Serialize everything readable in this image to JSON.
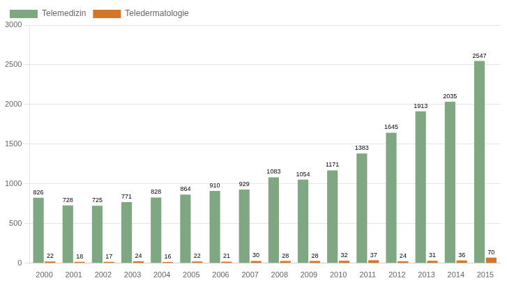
{
  "chart_data": {
    "type": "bar",
    "categories": [
      "2000",
      "2001",
      "2002",
      "2003",
      "2004",
      "2005",
      "2006",
      "2007",
      "2008",
      "2009",
      "2010",
      "2011",
      "2012",
      "2013",
      "2014",
      "2015"
    ],
    "series": [
      {
        "name": "Telemedizin",
        "color": "#7fa882",
        "values": [
          826,
          728,
          725,
          771,
          828,
          864,
          910,
          929,
          1083,
          1054,
          1171,
          1383,
          1645,
          1913,
          2035,
          2547
        ]
      },
      {
        "name": "Teledermatologie",
        "color": "#d4762a",
        "values": [
          22,
          18,
          17,
          24,
          16,
          22,
          21,
          30,
          28,
          28,
          32,
          37,
          24,
          31,
          36,
          70
        ]
      }
    ],
    "ylim": [
      0,
      3000
    ],
    "yticks": [
      0,
      500,
      1000,
      1500,
      2000,
      2500,
      3000
    ],
    "grid": true,
    "legend": "upper left",
    "data_labels": true
  }
}
